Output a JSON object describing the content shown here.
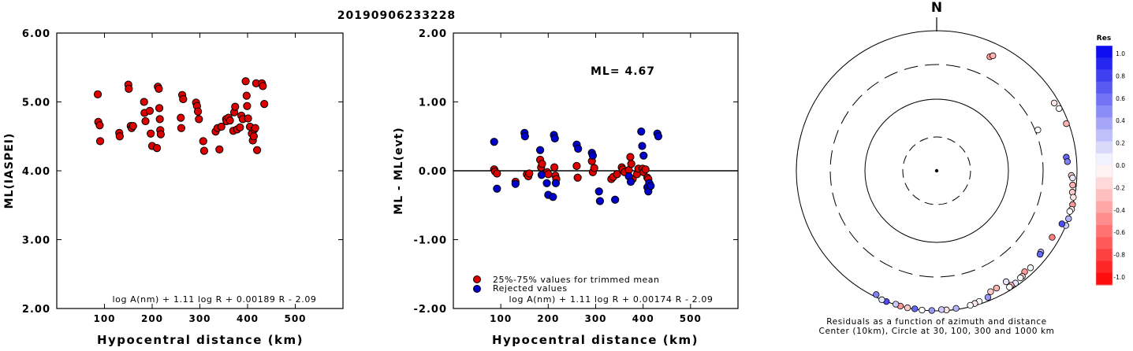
{
  "title": "20190906233228",
  "colors": {
    "red": "#dd0000",
    "blue": "#0000cc",
    "axis": "#000000"
  },
  "chart_data": [
    {
      "type": "scatter",
      "id": "left",
      "ylabel": "ML(IASPEI)",
      "xlabel": "Hypocentral distance (km)",
      "xlim": [
        0,
        600
      ],
      "ylim": [
        2.0,
        6.0
      ],
      "x_ticks": [
        "100",
        "200",
        "300",
        "400",
        "500"
      ],
      "y_ticks": [
        "6.00",
        "5.00",
        "4.00",
        "3.00",
        "2.00"
      ],
      "formula": "log A(nm) + 1.11 log R + 0.00189 R - 2.09",
      "series": [
        {
          "color": "red",
          "points": [
            [
              86,
              5.11
            ],
            [
              87,
              4.71
            ],
            [
              90,
              4.66
            ],
            [
              91,
              4.43
            ],
            [
              131,
              4.55
            ],
            [
              132,
              4.5
            ],
            [
              150,
              5.25
            ],
            [
              151,
              5.19
            ],
            [
              155,
              4.65
            ],
            [
              157,
              4.62
            ],
            [
              160,
              4.65
            ],
            [
              183,
              5.0
            ],
            [
              184,
              4.84
            ],
            [
              186,
              4.72
            ],
            [
              195,
              4.87
            ],
            [
              197,
              4.54
            ],
            [
              200,
              4.36
            ],
            [
              210,
              4.33
            ],
            [
              212,
              5.22
            ],
            [
              214,
              5.19
            ],
            [
              215,
              4.91
            ],
            [
              216,
              4.75
            ],
            [
              217,
              4.59
            ],
            [
              218,
              4.53
            ],
            [
              260,
              4.77
            ],
            [
              261,
              4.62
            ],
            [
              263,
              5.1
            ],
            [
              265,
              5.04
            ],
            [
              292,
              4.99
            ],
            [
              294,
              4.94
            ],
            [
              296,
              4.86
            ],
            [
              298,
              4.75
            ],
            [
              307,
              4.43
            ],
            [
              309,
              4.29
            ],
            [
              333,
              4.57
            ],
            [
              337,
              4.62
            ],
            [
              341,
              4.31
            ],
            [
              345,
              4.64
            ],
            [
              355,
              4.75
            ],
            [
              356,
              4.72
            ],
            [
              360,
              4.77
            ],
            [
              363,
              4.73
            ],
            [
              370,
              4.58
            ],
            [
              372,
              4.85
            ],
            [
              374,
              4.93
            ],
            [
              378,
              4.6
            ],
            [
              384,
              4.63
            ],
            [
              387,
              4.8
            ],
            [
              390,
              4.75
            ],
            [
              396,
              5.3
            ],
            [
              398,
              5.09
            ],
            [
              399,
              4.94
            ],
            [
              401,
              4.76
            ],
            [
              405,
              4.64
            ],
            [
              409,
              4.54
            ],
            [
              411,
              4.44
            ],
            [
              413,
              4.5
            ],
            [
              414,
              4.6
            ],
            [
              416,
              4.62
            ],
            [
              418,
              5.27
            ],
            [
              420,
              4.3
            ],
            [
              430,
              5.27
            ],
            [
              432,
              5.23
            ],
            [
              435,
              4.97
            ]
          ]
        }
      ]
    },
    {
      "type": "scatter",
      "id": "middle",
      "ylabel": "ML - ML(evt)",
      "xlabel": "Hypocentral distance (km)",
      "xlim": [
        0,
        600
      ],
      "ylim": [
        -2.0,
        2.0
      ],
      "x_ticks": [
        "100",
        "200",
        "300",
        "400",
        "500"
      ],
      "y_ticks": [
        "2.00",
        "1.00",
        "0.00",
        "-1.00",
        "-2.00"
      ],
      "ml_label": "ML=  4.67",
      "formula": "log A(nm) + 1.11 log R + 0.00174 R - 2.09",
      "legend": [
        {
          "color": "red",
          "label": "25%-75% values for trimmed mean"
        },
        {
          "color": "blue",
          "label": "Rejected values"
        }
      ],
      "series": [
        {
          "color": "red",
          "points": [
            [
              86,
              0.02
            ],
            [
              88,
              -0.01
            ],
            [
              92,
              -0.04
            ],
            [
              131,
              -0.16
            ],
            [
              155,
              -0.05
            ],
            [
              158,
              -0.08
            ],
            [
              160,
              -0.04
            ],
            [
              183,
              0.16
            ],
            [
              185,
              0.05
            ],
            [
              187,
              0.1
            ],
            [
              198,
              -0.02
            ],
            [
              200,
              -0.05
            ],
            [
              213,
              0.05
            ],
            [
              215,
              -0.07
            ],
            [
              217,
              -0.12
            ],
            [
              260,
              0.07
            ],
            [
              262,
              -0.1
            ],
            [
              292,
              0.14
            ],
            [
              294,
              -0.02
            ],
            [
              297,
              0.04
            ],
            [
              333,
              -0.12
            ],
            [
              337,
              -0.09
            ],
            [
              345,
              -0.05
            ],
            [
              355,
              0.05
            ],
            [
              357,
              0.02
            ],
            [
              361,
              -0.02
            ],
            [
              370,
              0.01
            ],
            [
              373,
              0.2
            ],
            [
              375,
              0.1
            ],
            [
              378,
              -0.12
            ],
            [
              387,
              -0.05
            ],
            [
              390,
              0.03
            ],
            [
              399,
              0.03
            ],
            [
              401,
              -0.02
            ],
            [
              405,
              0.02
            ],
            [
              409,
              -0.1
            ],
            [
              411,
              -0.12
            ],
            [
              414,
              -0.2
            ]
          ]
        },
        {
          "color": "blue",
          "points": [
            [
              86,
              0.42
            ],
            [
              92,
              -0.26
            ],
            [
              131,
              -0.19
            ],
            [
              150,
              0.55
            ],
            [
              151,
              0.5
            ],
            [
              183,
              0.3
            ],
            [
              186,
              -0.06
            ],
            [
              197,
              -0.18
            ],
            [
              200,
              -0.35
            ],
            [
              210,
              -0.38
            ],
            [
              212,
              0.52
            ],
            [
              214,
              0.47
            ],
            [
              216,
              -0.18
            ],
            [
              260,
              0.38
            ],
            [
              263,
              0.32
            ],
            [
              292,
              0.26
            ],
            [
              294,
              0.22
            ],
            [
              307,
              -0.3
            ],
            [
              309,
              -0.44
            ],
            [
              341,
              -0.42
            ],
            [
              370,
              -0.08
            ],
            [
              374,
              -0.16
            ],
            [
              396,
              0.57
            ],
            [
              398,
              0.36
            ],
            [
              401,
              0.22
            ],
            [
              409,
              -0.24
            ],
            [
              411,
              -0.3
            ],
            [
              413,
              -0.18
            ],
            [
              416,
              -0.22
            ],
            [
              430,
              0.54
            ],
            [
              432,
              0.5
            ]
          ]
        }
      ]
    },
    {
      "type": "scatter",
      "id": "polar",
      "north_label": "N",
      "caption_line1": "Residuals as a function of azimuth and distance",
      "caption_line2": "Center (10km), Circle at 30, 100, 300 and 1000 km",
      "colorbar": {
        "title": "Res",
        "tick_labels": [
          "1.0",
          "0.8",
          "0.6",
          "0.4",
          "0.2",
          "0.0",
          "-0.2",
          "-0.4",
          "-0.6",
          "-0.8",
          "-1.0"
        ],
        "max_color": "#0000ee",
        "mid_color": "#ffffff",
        "min_color": "#ff0000"
      },
      "stations": [
        [
          25,
          600,
          -0.4
        ],
        [
          26,
          650,
          -0.3
        ],
        [
          68,
          330,
          0.0
        ],
        [
          60,
          850,
          -0.1
        ],
        [
          63,
          900,
          0.0
        ],
        [
          70,
          920,
          -0.3
        ],
        [
          84,
          700,
          0.6
        ],
        [
          86,
          720,
          0.5
        ],
        [
          92,
          820,
          -0.2
        ],
        [
          93,
          860,
          0.1
        ],
        [
          96,
          880,
          -0.3
        ],
        [
          99,
          900,
          -0.2
        ],
        [
          101,
          960,
          -0.1
        ],
        [
          104,
          990,
          -0.4
        ],
        [
          106,
          1000,
          -0.1
        ],
        [
          107,
          960,
          0.0
        ],
        [
          110,
          1000,
          0.3
        ],
        [
          113,
          1010,
          0.2
        ],
        [
          113,
          860,
          0.7
        ],
        [
          120,
          780,
          -0.5
        ],
        [
          128,
          750,
          0.3
        ],
        [
          129,
          770,
          0.6
        ],
        [
          136,
          830,
          0.0
        ],
        [
          139,
          800,
          -0.4
        ],
        [
          141,
          860,
          -0.2
        ],
        [
          142,
          860,
          0.0
        ],
        [
          145,
          900,
          0.1
        ],
        [
          147,
          880,
          -0.3
        ],
        [
          148,
          900,
          0.0
        ],
        [
          148,
          720,
          0.1
        ],
        [
          153,
          740,
          -0.3
        ],
        [
          156,
          760,
          -0.2
        ],
        [
          158,
          880,
          0.4
        ],
        [
          162,
          910,
          0.0
        ],
        [
          164,
          930,
          -0.1
        ],
        [
          166,
          950,
          0.0
        ],
        [
          172,
          960,
          0.3
        ],
        [
          176,
          980,
          -0.1
        ],
        [
          178,
          960,
          0.2
        ],
        [
          182,
          990,
          0.4
        ],
        [
          186,
          1000,
          0.0
        ],
        [
          189,
          990,
          0.6
        ],
        [
          192,
          1010,
          -0.2
        ],
        [
          195,
          1020,
          -0.4
        ],
        [
          197,
          980,
          0.2
        ],
        [
          201,
          1000,
          0.7
        ],
        [
          203,
          1040,
          0.1
        ],
        [
          206,
          920,
          0.5
        ]
      ]
    }
  ]
}
